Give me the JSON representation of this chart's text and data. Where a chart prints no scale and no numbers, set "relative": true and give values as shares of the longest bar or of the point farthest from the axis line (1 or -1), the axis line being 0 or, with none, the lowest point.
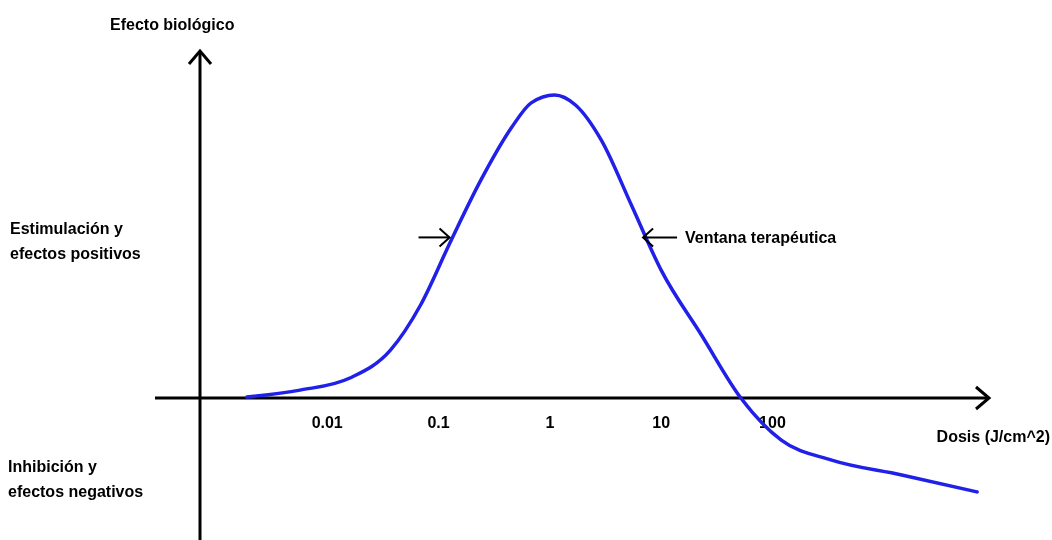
{
  "chart_data": {
    "type": "line",
    "relative": true,
    "log": "x",
    "xlabel": "Dosis  (J/cm^2)",
    "ylabel": "Efecto biológico",
    "annotations": [
      "Estimulación y\nefectos positivos",
      "Inhibición y\nefectos negativos",
      {
        "text": "Ventana terapéutica",
        "x": 6.6,
        "y": 0.53
      }
    ],
    "x": [
      0.0019,
      0.0057,
      0.016,
      0.037,
      0.069,
      0.13,
      0.24,
      0.45,
      0.68,
      1.1,
      1.7,
      2.9,
      5.4,
      10,
      23,
      52,
      120,
      340,
      1450,
      6900
    ],
    "series": [
      {
        "color": "#2020e8",
        "values": [
          0.003,
          0.026,
          0.066,
          0.158,
          0.307,
          0.521,
          0.719,
          0.891,
          0.974,
          1,
          0.967,
          0.851,
          0.637,
          0.422,
          0.208,
          0,
          -0.139,
          -0.205,
          -0.254,
          -0.31
        ]
      }
    ],
    "xlim": [
      0.00072,
      9000
    ],
    "xticks": [
      0.01,
      0.1,
      1,
      10,
      100
    ]
  }
}
